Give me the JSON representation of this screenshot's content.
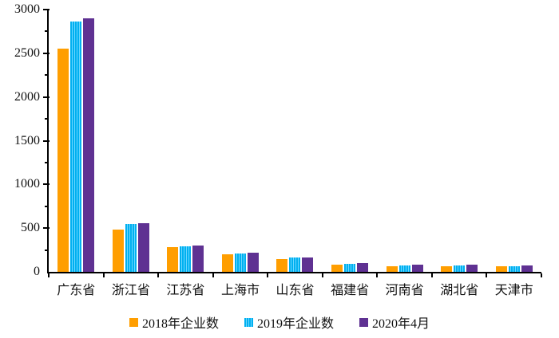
{
  "chart_data": {
    "type": "bar",
    "title": "",
    "xlabel": "",
    "ylabel": "",
    "categories": [
      "广东省",
      "浙江省",
      "江苏省",
      "上海市",
      "山东省",
      "福建省",
      "河南省",
      "湖北省",
      "天津市"
    ],
    "series": [
      {
        "name": "2018年企业数",
        "color": "#FF9E00",
        "pattern": "solid",
        "values": [
          2550,
          480,
          280,
          205,
          145,
          80,
          65,
          65,
          65
        ]
      },
      {
        "name": "2019年企业数",
        "color": "#00B0F0",
        "pattern": "vertical-stripes",
        "stripe_color": "#6BD6FF",
        "values": [
          2860,
          550,
          295,
          212,
          160,
          95,
          75,
          72,
          62
        ]
      },
      {
        "name": "2020年4月",
        "color": "#5F3192",
        "pattern": "solid",
        "values": [
          2900,
          560,
          305,
          218,
          165,
          100,
          82,
          78,
          75
        ]
      }
    ],
    "ylim": [
      0,
      3000
    ],
    "y_major_step": 500,
    "y_minor_step": 250,
    "y_tick_labels": [
      "0",
      "500",
      "1000",
      "1500",
      "2000",
      "2500",
      "3000"
    ],
    "grid": false,
    "legend_position": "bottom",
    "axis_color": "#000000",
    "text_color": "#111111"
  }
}
